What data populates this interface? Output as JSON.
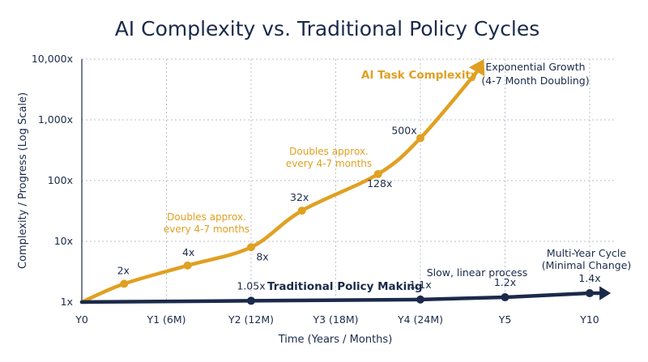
{
  "chart_data": {
    "type": "line",
    "title": "AI Complexity vs. Traditional Policy Cycles",
    "xlabel": "Time (Years / Months)",
    "ylabel": "Complexity / Progress (Log Scale)",
    "y_scale": "log",
    "ylim": [
      1,
      10000
    ],
    "y_ticks": [
      {
        "value": 1,
        "label": "1x"
      },
      {
        "value": 10,
        "label": "10x"
      },
      {
        "value": 100,
        "label": "100x"
      },
      {
        "value": 1000,
        "label": "1,000x"
      },
      {
        "value": 10000,
        "label": "10,000x"
      }
    ],
    "x_ticks": [
      "Y0",
      "Y1 (6M)",
      "Y2 (12M)",
      "Y3 (18M)",
      "Y4 (24M)",
      "Y5",
      "Y10"
    ],
    "grid": true,
    "series": [
      {
        "name": "AI Task Complexity",
        "color": "#e0a022",
        "points": [
          {
            "x": 0,
            "y": 1,
            "label": ""
          },
          {
            "x": 0.5,
            "y": 2,
            "label": "2x"
          },
          {
            "x": 1.25,
            "y": 4,
            "label": "4x"
          },
          {
            "x": 2,
            "y": 8,
            "label": "8x"
          },
          {
            "x": 2.6,
            "y": 32,
            "label": "32x"
          },
          {
            "x": 3.5,
            "y": 128,
            "label": "128x"
          },
          {
            "x": 4,
            "y": 500,
            "label": "500x"
          }
        ],
        "arrow_to": {
          "x": 4.75,
          "y": 10000
        }
      },
      {
        "name": "Traditional Policy Making",
        "color": "#1b2a4a",
        "points": [
          {
            "x": 0,
            "y": 1,
            "label": ""
          },
          {
            "x": 2,
            "y": 1.05,
            "label": "1.05x"
          },
          {
            "x": 4,
            "y": 1.1,
            "label": "1.1x"
          },
          {
            "x": 5,
            "y": 1.2,
            "label": "1.2x"
          },
          {
            "x": 6,
            "y": 1.4,
            "label": "1.4x"
          }
        ],
        "arrow_to": {
          "x": 6.25,
          "y": 1.4
        }
      }
    ],
    "annotations": {
      "exponential_line1": "Exponential Growth",
      "exponential_line2": "(4-7 Month Doubling)",
      "doubles_a_line1": "Doubles approx.",
      "doubles_a_line2": "every 4-7 months",
      "doubles_b_line1": "Doubles approx.",
      "doubles_b_line2": "every 4-7 months",
      "slow_linear": "Slow, linear process",
      "multi_year_line1": "Multi-Year Cycle",
      "multi_year_line2": "(Minimal Change)"
    }
  }
}
